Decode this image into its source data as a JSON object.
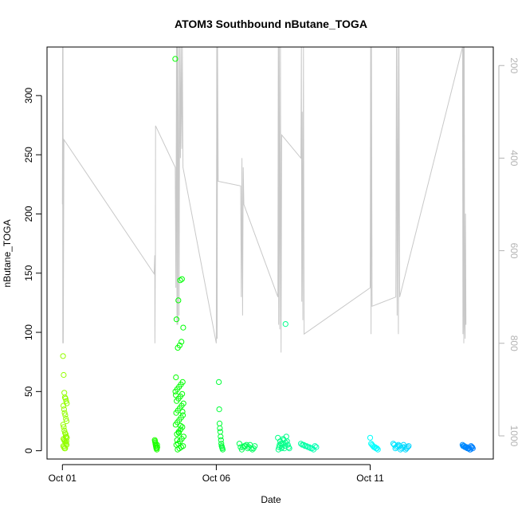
{
  "chart_data": {
    "type": "scatter",
    "title": "ATOM3 Southbound nButane_TOGA",
    "xlabel": "Date",
    "ylabel": "nButane_TOGA",
    "xlim": [
      "2016-09-30T12:00",
      "2016-10-15T00:00"
    ],
    "ylim": [
      -7,
      341
    ],
    "x_ticks": [
      {
        "date": "2016-10-01T00:00",
        "label": "Oct 01"
      },
      {
        "date": "2016-10-06T00:00",
        "label": "Oct 06"
      },
      {
        "date": "2016-10-11T00:00",
        "label": "Oct 11"
      }
    ],
    "y_ticks": [
      0,
      50,
      100,
      150,
      200,
      250,
      300
    ],
    "secondary_axis": {
      "side": "right",
      "reversed": true,
      "range": [
        1050,
        160
      ],
      "ticks": [
        200,
        400,
        600,
        800,
        1000
      ],
      "color": "#b3b3b3",
      "description": "altitude/pressure profile (grey line)"
    },
    "marker": "open circle",
    "color_scale": "green to blue by time",
    "clusters": [
      {
        "start": "2016-10-01T00:30",
        "end": "2016-10-01T03:30",
        "values": [
          80,
          64,
          49,
          45,
          44,
          42,
          40,
          38,
          35,
          32,
          30,
          27,
          25,
          22,
          20,
          17,
          15,
          14,
          12,
          11,
          10,
          9,
          8,
          7,
          6,
          5,
          4,
          3,
          2,
          2,
          12,
          8
        ]
      },
      {
        "start": "2016-10-04T00:00",
        "end": "2016-10-04T02:00",
        "values": [
          9,
          8,
          7,
          6,
          5,
          4,
          3,
          2,
          2,
          1,
          5,
          3
        ]
      },
      {
        "start": "2016-10-04T16:00",
        "end": "2016-10-04T22:30",
        "values": [
          331,
          145,
          144,
          127,
          111,
          104,
          92,
          89,
          87,
          62,
          58,
          56,
          54,
          52,
          50,
          48,
          46,
          44,
          42,
          40,
          38,
          36,
          34,
          32,
          30,
          28,
          26,
          24,
          22,
          20,
          18,
          16,
          14,
          12,
          10,
          8,
          6,
          5,
          4,
          3,
          2,
          1,
          47,
          33,
          21,
          15,
          9
        ]
      },
      {
        "start": "2016-10-06T02:00",
        "end": "2016-10-06T05:00",
        "values": [
          58,
          35,
          23,
          19,
          16,
          12,
          9,
          6,
          4,
          3,
          2,
          1
        ]
      },
      {
        "start": "2016-10-06T18:00",
        "end": "2016-10-07T06:00",
        "values": [
          6,
          5,
          4,
          4,
          3,
          3,
          2,
          2,
          1,
          1,
          5,
          3,
          2,
          4
        ]
      },
      {
        "start": "2016-10-08T00:00",
        "end": "2016-10-08T06:00",
        "values": [
          11,
          10,
          8,
          7,
          6,
          5,
          4,
          3,
          3,
          2,
          2,
          1,
          9,
          6
        ]
      },
      {
        "start": "2016-10-08T06:00",
        "end": "2016-10-08T09:00",
        "values": [
          107,
          12,
          8,
          5,
          3,
          2
        ]
      },
      {
        "start": "2016-10-08T18:00",
        "end": "2016-10-09T06:00",
        "values": [
          6,
          5,
          5,
          4,
          4,
          3,
          3,
          2,
          2,
          1,
          4,
          3
        ]
      },
      {
        "start": "2016-10-11T00:00",
        "end": "2016-10-11T06:00",
        "values": [
          11,
          6,
          5,
          4,
          3,
          3,
          2,
          2,
          1
        ]
      },
      {
        "start": "2016-10-11T18:00",
        "end": "2016-10-12T06:00",
        "values": [
          6,
          5,
          5,
          4,
          4,
          3,
          3,
          3,
          2,
          2,
          2,
          1,
          1,
          5,
          4,
          3
        ]
      },
      {
        "start": "2016-10-14T00:00",
        "end": "2016-10-14T08:00",
        "values": [
          5,
          4,
          4,
          4,
          3,
          3,
          3,
          3,
          2,
          2,
          2,
          2,
          1,
          1,
          4,
          3,
          3,
          2
        ]
      }
    ],
    "profile_line": {
      "color": "#c8c8c8",
      "points": [
        [
          "2016-10-01T00:00",
          500
        ],
        [
          "2016-10-01T00:10",
          160
        ],
        [
          "2016-10-01T00:20",
          800
        ],
        [
          "2016-10-01T00:30",
          160
        ],
        [
          "2016-10-01T00:40",
          800
        ],
        [
          "2016-10-01T01:10",
          360
        ],
        [
          "2016-10-03T23:30",
          650
        ],
        [
          "2016-10-04T00:00",
          610
        ],
        [
          "2016-10-04T00:10",
          800
        ],
        [
          "2016-10-04T00:30",
          600
        ],
        [
          "2016-10-04T00:40",
          330
        ],
        [
          "2016-10-04T16:00",
          420
        ],
        [
          "2016-10-04T16:30",
          680
        ],
        [
          "2016-10-04T17:00",
          160
        ],
        [
          "2016-10-04T17:20",
          760
        ],
        [
          "2016-10-04T17:40",
          160
        ],
        [
          "2016-10-04T18:00",
          760
        ],
        [
          "2016-10-04T18:30",
          160
        ],
        [
          "2016-10-04T19:00",
          740
        ],
        [
          "2016-10-04T19:30",
          160
        ],
        [
          "2016-10-04T20:00",
          400
        ],
        [
          "2016-10-04T20:30",
          160
        ],
        [
          "2016-10-04T21:00",
          380
        ],
        [
          "2016-10-04T21:30",
          160
        ],
        [
          "2016-10-04T22:00",
          420
        ],
        [
          "2016-10-06T00:00",
          800
        ],
        [
          "2016-10-06T00:20",
          160
        ],
        [
          "2016-10-06T00:40",
          790
        ],
        [
          "2016-10-06T01:00",
          160
        ],
        [
          "2016-10-06T01:30",
          450
        ],
        [
          "2016-10-06T19:00",
          460
        ],
        [
          "2016-10-06T19:30",
          700
        ],
        [
          "2016-10-06T20:00",
          400
        ],
        [
          "2016-10-06T20:30",
          740
        ],
        [
          "2016-10-06T21:00",
          420
        ],
        [
          "2016-10-06T21:30",
          500
        ],
        [
          "2016-10-08T00:00",
          700
        ],
        [
          "2016-10-08T00:20",
          160
        ],
        [
          "2016-10-08T00:40",
          760
        ],
        [
          "2016-10-08T01:00",
          160
        ],
        [
          "2016-10-08T01:30",
          770
        ],
        [
          "2016-10-08T02:00",
          160
        ],
        [
          "2016-10-08T02:30",
          820
        ],
        [
          "2016-10-08T03:00",
          350
        ],
        [
          "2016-10-08T18:00",
          400
        ],
        [
          "2016-10-08T18:20",
          160
        ],
        [
          "2016-10-08T18:40",
          710
        ],
        [
          "2016-10-08T19:00",
          300
        ],
        [
          "2016-10-08T19:30",
          750
        ],
        [
          "2016-10-08T20:00",
          160
        ],
        [
          "2016-10-08T20:30",
          780
        ],
        [
          "2016-10-11T00:00",
          680
        ],
        [
          "2016-10-11T00:20",
          160
        ],
        [
          "2016-10-11T00:40",
          780
        ],
        [
          "2016-10-11T01:00",
          160
        ],
        [
          "2016-10-11T01:30",
          720
        ],
        [
          "2016-10-11T20:00",
          700
        ],
        [
          "2016-10-11T20:30",
          160
        ],
        [
          "2016-10-11T21:00",
          740
        ],
        [
          "2016-10-11T21:30",
          160
        ],
        [
          "2016-10-11T22:00",
          780
        ],
        [
          "2016-10-11T22:30",
          160
        ],
        [
          "2016-10-11T23:00",
          700
        ],
        [
          "2016-10-14T00:00",
          160
        ],
        [
          "2016-10-14T00:20",
          780
        ],
        [
          "2016-10-14T00:40",
          160
        ],
        [
          "2016-10-14T01:00",
          800
        ],
        [
          "2016-10-14T01:20",
          160
        ],
        [
          "2016-10-14T01:40",
          760
        ],
        [
          "2016-10-14T02:00",
          790
        ],
        [
          "2016-10-14T02:20",
          520
        ],
        [
          "2016-10-14T02:40",
          760
        ]
      ]
    }
  }
}
